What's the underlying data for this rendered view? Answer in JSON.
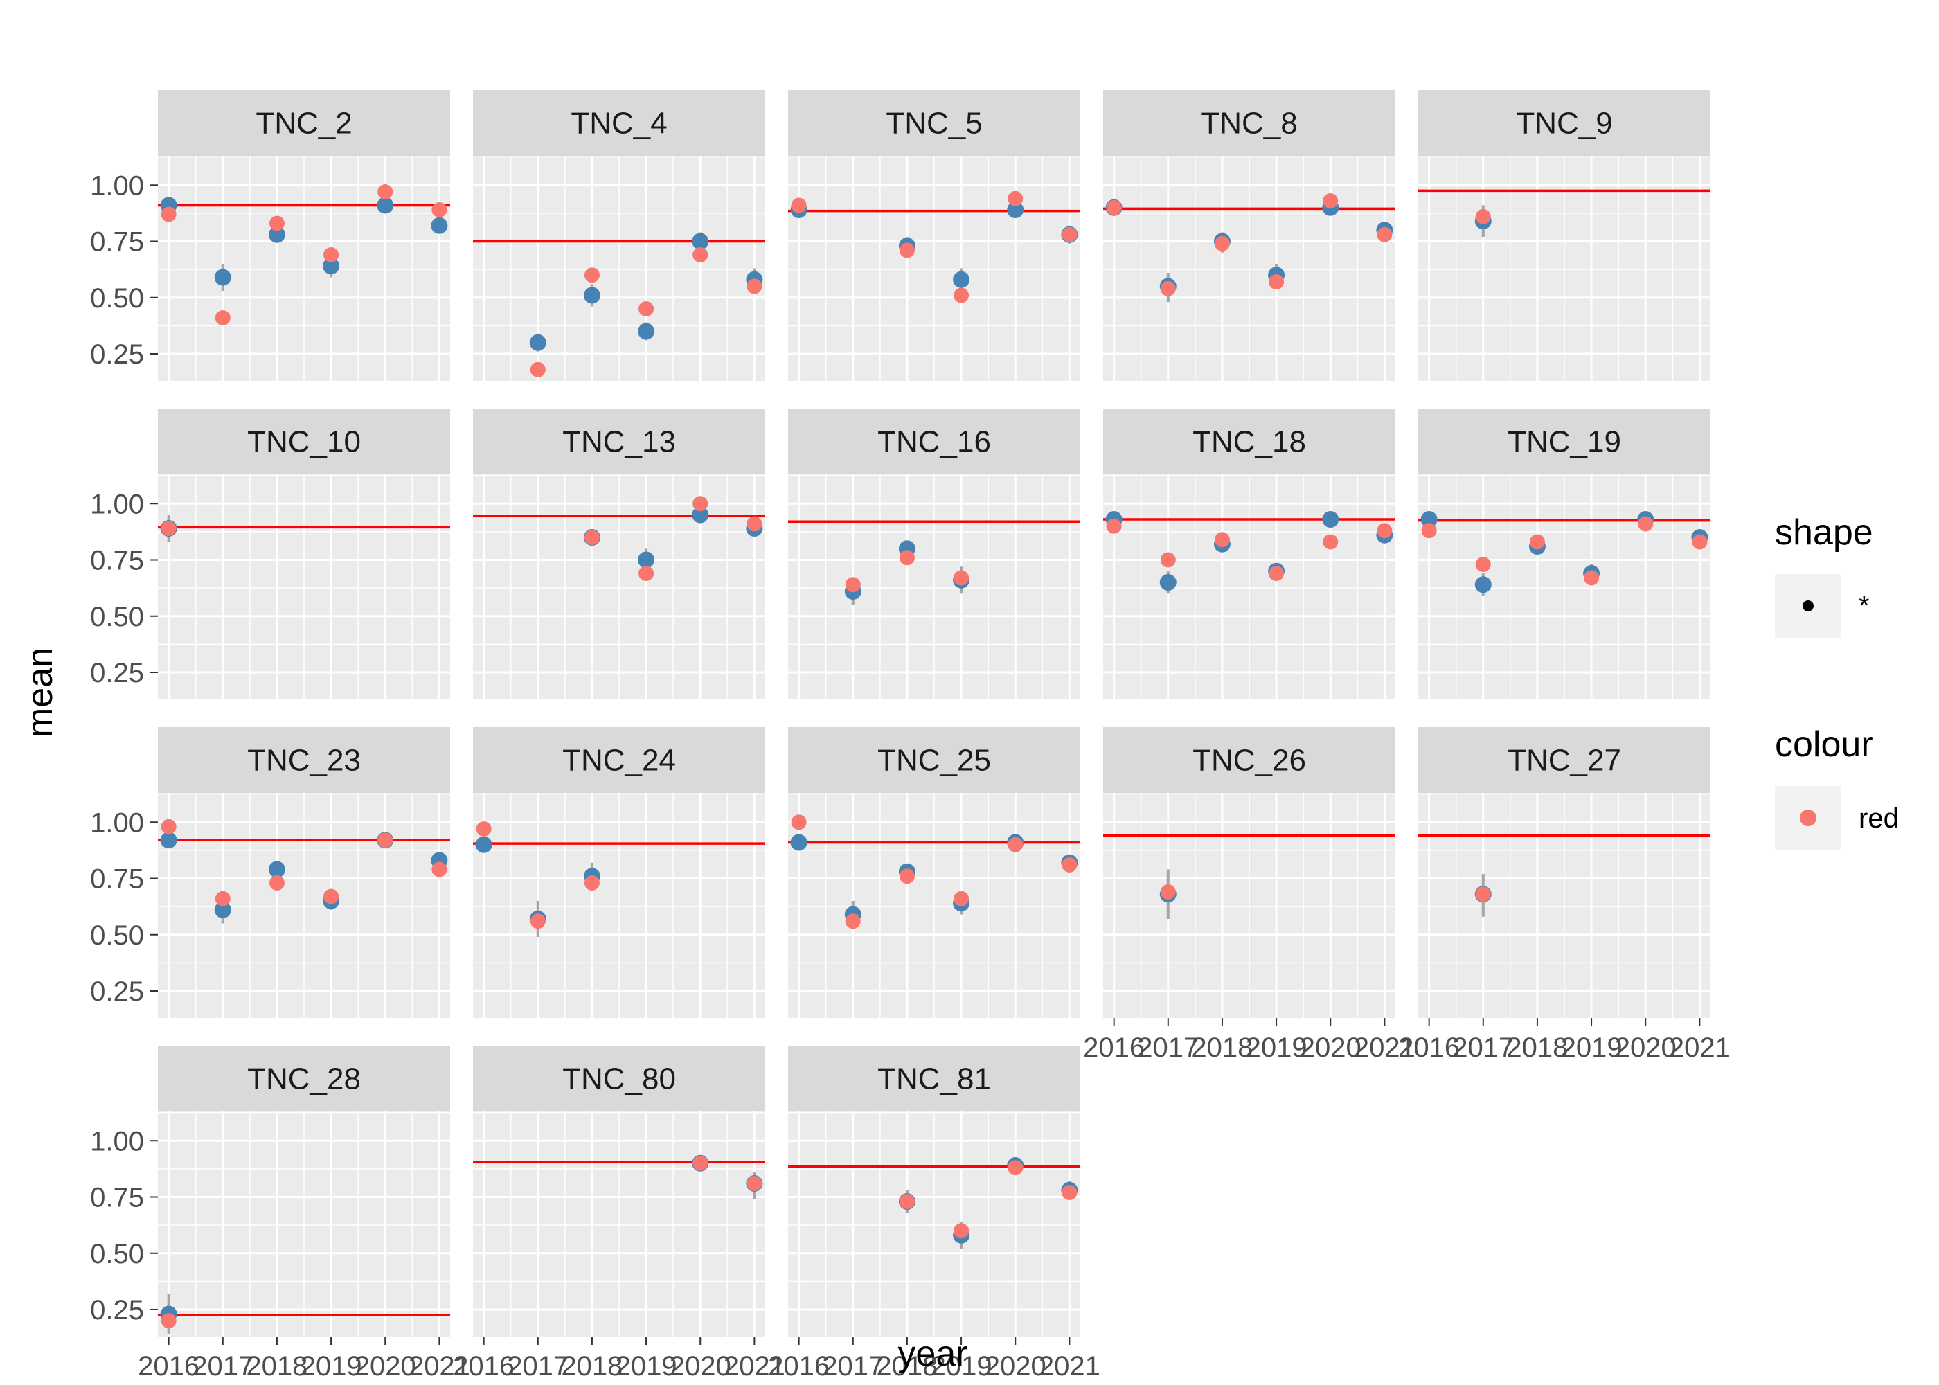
{
  "chart_data": {
    "type": "scatter",
    "xlabel": "year",
    "ylabel": "mean",
    "x_ticks": [
      2016,
      2017,
      2018,
      2019,
      2020,
      2021
    ],
    "x_tick_labels": [
      "2016",
      "2017",
      "2018",
      "2019",
      "2020",
      "2021"
    ],
    "xlim": [
      2015.8,
      2021.2
    ],
    "y_ticks": [
      0.25,
      0.5,
      0.75,
      1.0
    ],
    "y_tick_labels": [
      "0.25",
      "0.50",
      "0.75",
      "1.00"
    ],
    "ylim": [
      0.13,
      1.13
    ],
    "colors": {
      "panel_bg": "#ebebeb",
      "strip_bg": "#d9d9d9",
      "grid": "#ffffff",
      "blue_point": "#4682b4",
      "red_point": "#f8766d",
      "hline": "#ff0000",
      "errorbar": "#a6a6a6"
    },
    "legend": {
      "position": "right",
      "shape": {
        "title": "shape",
        "label": "*"
      },
      "colour": {
        "title": "colour",
        "label": "red"
      }
    },
    "facets": [
      {
        "name": "TNC_2",
        "hline": 0.91,
        "blue": [
          [
            2016,
            0.91
          ],
          [
            2017,
            0.59
          ],
          [
            2018,
            0.78
          ],
          [
            2019,
            0.64
          ],
          [
            2020,
            0.91
          ],
          [
            2021,
            0.82
          ]
        ],
        "red": [
          [
            2016,
            0.87
          ],
          [
            2017,
            0.41
          ],
          [
            2018,
            0.83
          ],
          [
            2019,
            0.69
          ],
          [
            2020,
            0.97
          ],
          [
            2021,
            0.89
          ]
        ],
        "err": [
          [
            2016,
            0.89,
            0.93
          ],
          [
            2017,
            0.53,
            0.65
          ],
          [
            2018,
            0.75,
            0.81
          ],
          [
            2019,
            0.59,
            0.69
          ],
          [
            2020,
            0.89,
            0.93
          ],
          [
            2021,
            0.8,
            0.84
          ]
        ]
      },
      {
        "name": "TNC_4",
        "hline": 0.75,
        "blue": [
          [
            2017,
            0.3
          ],
          [
            2018,
            0.51
          ],
          [
            2019,
            0.35
          ],
          [
            2020,
            0.75
          ],
          [
            2021,
            0.58
          ]
        ],
        "red": [
          [
            2017,
            0.18
          ],
          [
            2018,
            0.6
          ],
          [
            2019,
            0.45
          ],
          [
            2020,
            0.69
          ],
          [
            2021,
            0.55
          ]
        ],
        "err": [
          [
            2017,
            0.26,
            0.34
          ],
          [
            2018,
            0.46,
            0.56
          ],
          [
            2019,
            0.31,
            0.39
          ],
          [
            2020,
            0.71,
            0.79
          ],
          [
            2021,
            0.53,
            0.63
          ]
        ]
      },
      {
        "name": "TNC_5",
        "hline": 0.885,
        "blue": [
          [
            2016,
            0.89
          ],
          [
            2018,
            0.73
          ],
          [
            2019,
            0.58
          ],
          [
            2020,
            0.89
          ],
          [
            2021,
            0.78
          ]
        ],
        "red": [
          [
            2016,
            0.91
          ],
          [
            2018,
            0.71
          ],
          [
            2019,
            0.51
          ],
          [
            2020,
            0.94
          ],
          [
            2021,
            0.78
          ]
        ],
        "err": [
          [
            2016,
            0.87,
            0.91
          ],
          [
            2018,
            0.69,
            0.77
          ],
          [
            2019,
            0.53,
            0.63
          ],
          [
            2020,
            0.87,
            0.91
          ],
          [
            2021,
            0.74,
            0.82
          ]
        ]
      },
      {
        "name": "TNC_8",
        "hline": 0.895,
        "blue": [
          [
            2016,
            0.9
          ],
          [
            2017,
            0.55
          ],
          [
            2018,
            0.75
          ],
          [
            2019,
            0.6
          ],
          [
            2020,
            0.9
          ],
          [
            2021,
            0.8
          ]
        ],
        "red": [
          [
            2016,
            0.9
          ],
          [
            2017,
            0.54
          ],
          [
            2018,
            0.74
          ],
          [
            2019,
            0.57
          ],
          [
            2020,
            0.93
          ],
          [
            2021,
            0.78
          ]
        ],
        "err": [
          [
            2016,
            0.88,
            0.92
          ],
          [
            2017,
            0.48,
            0.61
          ],
          [
            2018,
            0.7,
            0.79
          ],
          [
            2019,
            0.55,
            0.65
          ],
          [
            2020,
            0.88,
            0.92
          ],
          [
            2021,
            0.78,
            0.82
          ]
        ]
      },
      {
        "name": "TNC_9",
        "hline": 0.975,
        "blue": [
          [
            2017,
            0.84
          ]
        ],
        "red": [
          [
            2017,
            0.86
          ]
        ],
        "err": [
          [
            2017,
            0.77,
            0.91
          ]
        ]
      },
      {
        "name": "TNC_10",
        "hline": 0.895,
        "blue": [
          [
            2016,
            0.89
          ]
        ],
        "red": [
          [
            2016,
            0.89
          ]
        ],
        "err": [
          [
            2016,
            0.83,
            0.95
          ]
        ]
      },
      {
        "name": "TNC_13",
        "hline": 0.945,
        "blue": [
          [
            2018,
            0.85
          ],
          [
            2019,
            0.75
          ],
          [
            2020,
            0.95
          ],
          [
            2021,
            0.89
          ]
        ],
        "red": [
          [
            2018,
            0.85
          ],
          [
            2019,
            0.69
          ],
          [
            2020,
            1.0
          ],
          [
            2021,
            0.91
          ]
        ],
        "err": [
          [
            2018,
            0.83,
            0.87
          ],
          [
            2019,
            0.7,
            0.8
          ],
          [
            2020,
            0.93,
            0.97
          ],
          [
            2021,
            0.86,
            0.92
          ]
        ]
      },
      {
        "name": "TNC_16",
        "hline": 0.92,
        "blue": [
          [
            2017,
            0.61
          ],
          [
            2018,
            0.8
          ],
          [
            2019,
            0.66
          ]
        ],
        "red": [
          [
            2017,
            0.64
          ],
          [
            2018,
            0.76
          ],
          [
            2019,
            0.67
          ]
        ],
        "err": [
          [
            2017,
            0.55,
            0.67
          ],
          [
            2018,
            0.77,
            0.83
          ],
          [
            2019,
            0.6,
            0.72
          ]
        ]
      },
      {
        "name": "TNC_18",
        "hline": 0.93,
        "blue": [
          [
            2016,
            0.93
          ],
          [
            2017,
            0.65
          ],
          [
            2018,
            0.82
          ],
          [
            2019,
            0.7
          ],
          [
            2020,
            0.93
          ],
          [
            2021,
            0.86
          ]
        ],
        "red": [
          [
            2016,
            0.9
          ],
          [
            2017,
            0.75
          ],
          [
            2018,
            0.84
          ],
          [
            2019,
            0.69
          ],
          [
            2020,
            0.83
          ],
          [
            2021,
            0.88
          ]
        ],
        "err": [
          [
            2016,
            0.91,
            0.95
          ],
          [
            2017,
            0.6,
            0.7
          ],
          [
            2018,
            0.8,
            0.84
          ],
          [
            2019,
            0.67,
            0.73
          ],
          [
            2020,
            0.91,
            0.95
          ],
          [
            2021,
            0.84,
            0.88
          ]
        ]
      },
      {
        "name": "TNC_19",
        "hline": 0.925,
        "blue": [
          [
            2016,
            0.93
          ],
          [
            2017,
            0.64
          ],
          [
            2018,
            0.81
          ],
          [
            2019,
            0.69
          ],
          [
            2020,
            0.93
          ],
          [
            2021,
            0.85
          ]
        ],
        "red": [
          [
            2016,
            0.88
          ],
          [
            2017,
            0.73
          ],
          [
            2018,
            0.83
          ],
          [
            2019,
            0.67
          ],
          [
            2020,
            0.91
          ],
          [
            2021,
            0.83
          ]
        ],
        "err": [
          [
            2016,
            0.91,
            0.95
          ],
          [
            2017,
            0.59,
            0.69
          ],
          [
            2018,
            0.79,
            0.83
          ],
          [
            2019,
            0.65,
            0.73
          ],
          [
            2020,
            0.91,
            0.95
          ],
          [
            2021,
            0.83,
            0.87
          ]
        ]
      },
      {
        "name": "TNC_23",
        "hline": 0.92,
        "blue": [
          [
            2016,
            0.92
          ],
          [
            2017,
            0.61
          ],
          [
            2018,
            0.79
          ],
          [
            2019,
            0.65
          ],
          [
            2020,
            0.92
          ],
          [
            2021,
            0.83
          ]
        ],
        "red": [
          [
            2016,
            0.98
          ],
          [
            2017,
            0.66
          ],
          [
            2018,
            0.73
          ],
          [
            2019,
            0.67
          ],
          [
            2020,
            0.92
          ],
          [
            2021,
            0.79
          ]
        ],
        "err": [
          [
            2016,
            0.9,
            0.94
          ],
          [
            2017,
            0.55,
            0.67
          ],
          [
            2018,
            0.76,
            0.82
          ],
          [
            2019,
            0.61,
            0.69
          ],
          [
            2020,
            0.9,
            0.94
          ],
          [
            2021,
            0.81,
            0.85
          ]
        ]
      },
      {
        "name": "TNC_24",
        "hline": 0.905,
        "blue": [
          [
            2016,
            0.9
          ],
          [
            2017,
            0.57
          ],
          [
            2018,
            0.76
          ]
        ],
        "red": [
          [
            2016,
            0.97
          ],
          [
            2017,
            0.56
          ],
          [
            2018,
            0.73
          ]
        ],
        "err": [
          [
            2016,
            0.88,
            0.92
          ],
          [
            2017,
            0.49,
            0.65
          ],
          [
            2018,
            0.7,
            0.82
          ]
        ]
      },
      {
        "name": "TNC_25",
        "hline": 0.91,
        "blue": [
          [
            2016,
            0.91
          ],
          [
            2017,
            0.59
          ],
          [
            2018,
            0.78
          ],
          [
            2019,
            0.64
          ],
          [
            2020,
            0.91
          ],
          [
            2021,
            0.82
          ]
        ],
        "red": [
          [
            2016,
            1.0
          ],
          [
            2017,
            0.56
          ],
          [
            2018,
            0.76
          ],
          [
            2019,
            0.66
          ],
          [
            2020,
            0.9
          ],
          [
            2021,
            0.81
          ]
        ],
        "err": [
          [
            2016,
            0.89,
            0.93
          ],
          [
            2017,
            0.54,
            0.65
          ],
          [
            2018,
            0.75,
            0.81
          ],
          [
            2019,
            0.59,
            0.69
          ],
          [
            2020,
            0.89,
            0.93
          ],
          [
            2021,
            0.8,
            0.84
          ]
        ]
      },
      {
        "name": "TNC_26",
        "hline": 0.94,
        "blue": [
          [
            2017,
            0.68
          ]
        ],
        "red": [
          [
            2017,
            0.69
          ]
        ],
        "err": [
          [
            2017,
            0.57,
            0.79
          ]
        ]
      },
      {
        "name": "TNC_27",
        "hline": 0.94,
        "blue": [
          [
            2017,
            0.68
          ]
        ],
        "red": [
          [
            2017,
            0.68
          ]
        ],
        "err": [
          [
            2017,
            0.58,
            0.77
          ]
        ]
      },
      {
        "name": "TNC_28",
        "hline": 0.225,
        "blue": [
          [
            2016,
            0.23
          ]
        ],
        "red": [
          [
            2016,
            0.2
          ]
        ],
        "err": [
          [
            2016,
            0.14,
            0.32
          ]
        ]
      },
      {
        "name": "TNC_80",
        "hline": 0.905,
        "blue": [
          [
            2020,
            0.9
          ],
          [
            2021,
            0.81
          ]
        ],
        "red": [
          [
            2020,
            0.9
          ],
          [
            2021,
            0.81
          ]
        ],
        "err": [
          [
            2020,
            0.88,
            0.92
          ],
          [
            2021,
            0.74,
            0.86
          ]
        ]
      },
      {
        "name": "TNC_81",
        "hline": 0.885,
        "blue": [
          [
            2018,
            0.73
          ],
          [
            2019,
            0.58
          ],
          [
            2020,
            0.89
          ],
          [
            2021,
            0.78
          ]
        ],
        "red": [
          [
            2018,
            0.73
          ],
          [
            2019,
            0.6
          ],
          [
            2020,
            0.88
          ],
          [
            2021,
            0.77
          ]
        ],
        "err": [
          [
            2018,
            0.68,
            0.78
          ],
          [
            2019,
            0.52,
            0.64
          ],
          [
            2020,
            0.87,
            0.91
          ],
          [
            2021,
            0.74,
            0.82
          ]
        ]
      }
    ]
  }
}
